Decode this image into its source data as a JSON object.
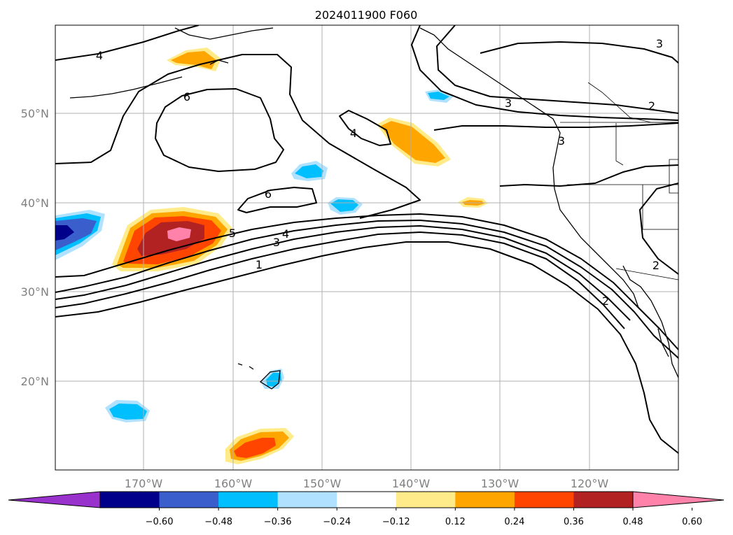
{
  "title": "2024011900 F060",
  "latitude_labels": [
    "50°N",
    "40°N",
    "30°N",
    "20°N"
  ],
  "longitude_labels": [
    "170°W",
    "160°W",
    "150°W",
    "140°W",
    "130°W",
    "120°W"
  ],
  "colorbar": {
    "ticks": [
      "−0.60",
      "−0.48",
      "−0.36",
      "−0.24",
      "−0.12",
      "0.12",
      "0.24",
      "0.36",
      "0.48",
      "0.60"
    ],
    "colors": [
      "#9932cc",
      "#00008b",
      "#3a5fcd",
      "#00bfff",
      "#b0e2ff",
      "#ffffff",
      "#ffeb8a",
      "#ffa500",
      "#ff4500",
      "#b22222",
      "#ff82ab"
    ]
  },
  "contour_labels": [
    "4",
    "6",
    "4",
    "6",
    "5",
    "4",
    "3",
    "1",
    "3",
    "2",
    "3",
    "3",
    "2",
    "2"
  ]
}
